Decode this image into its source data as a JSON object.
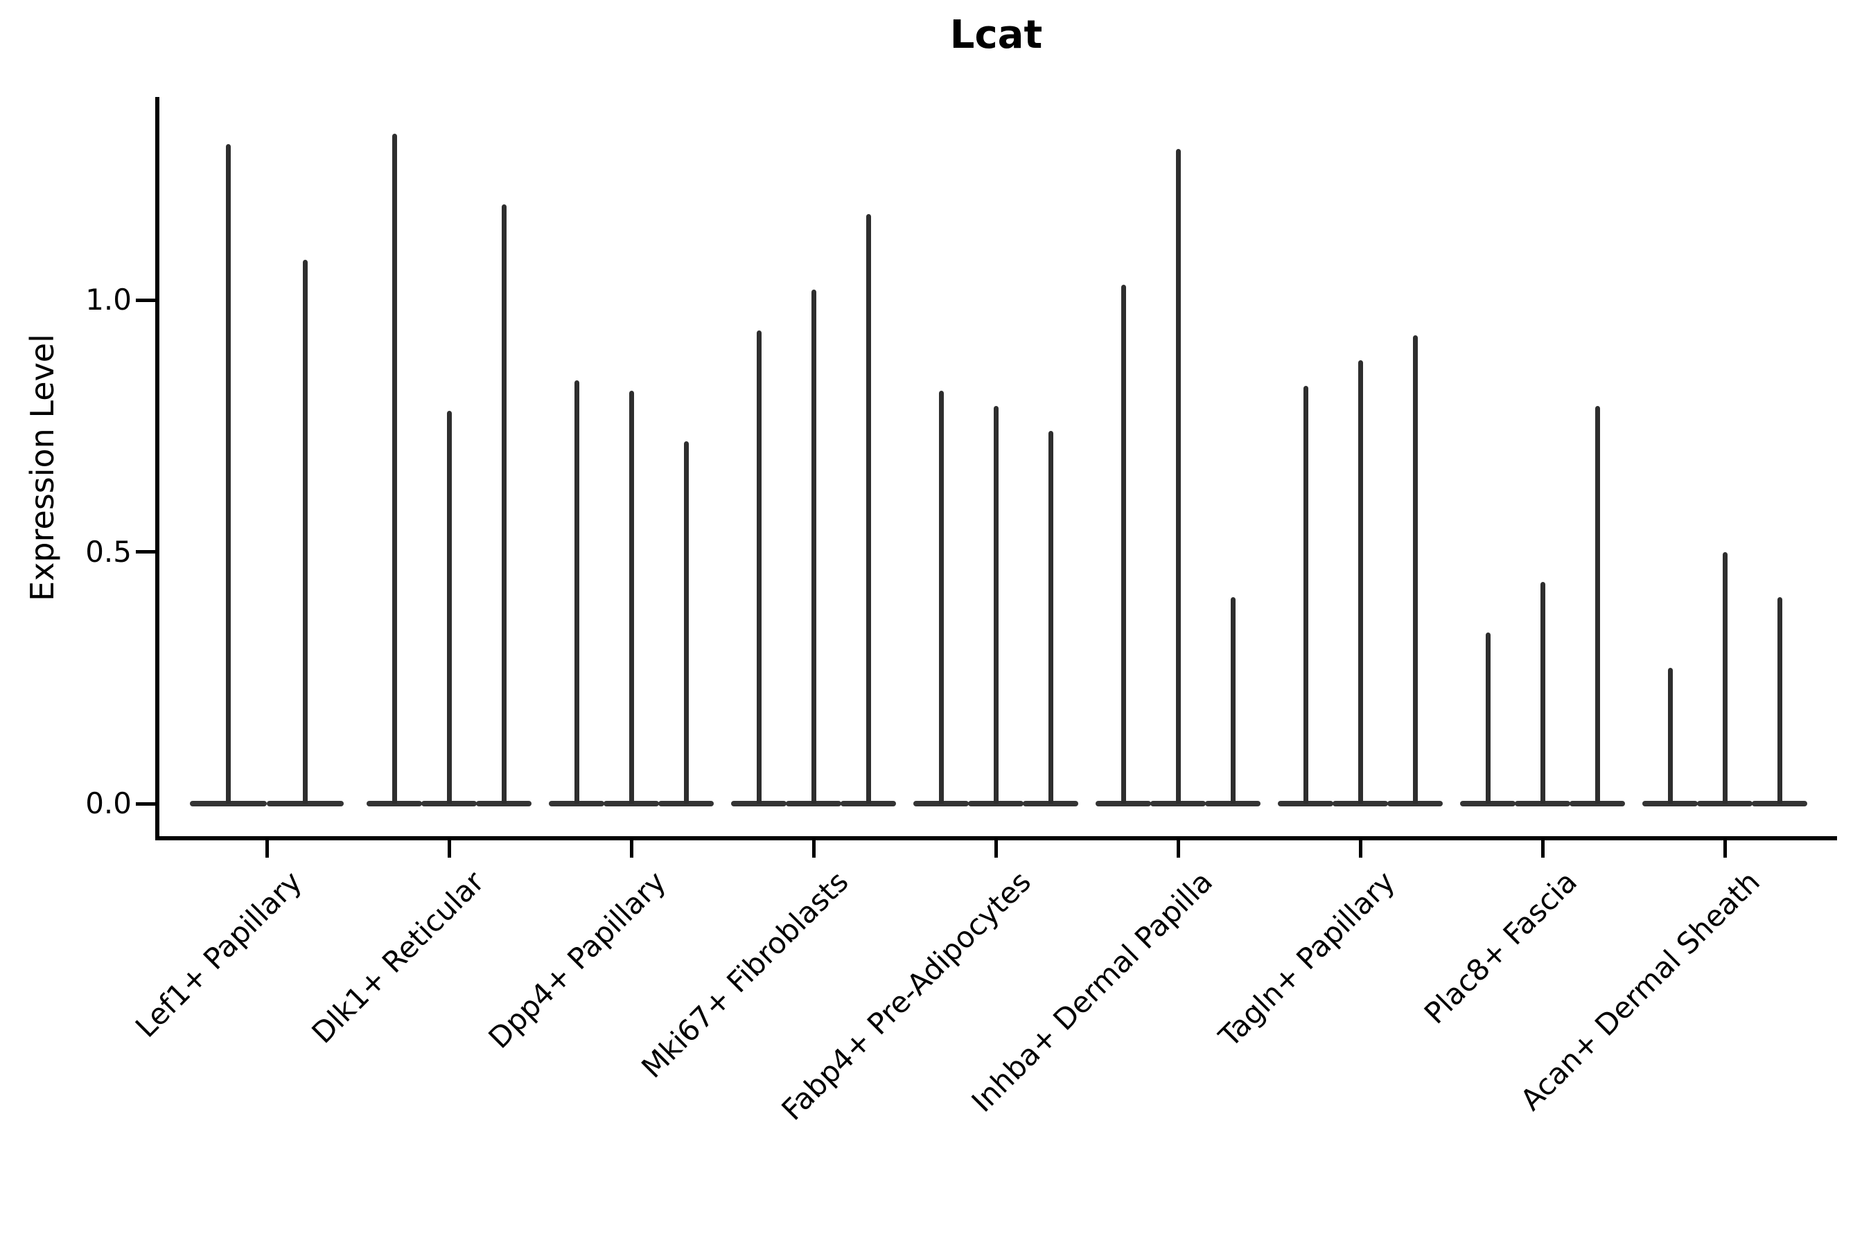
{
  "title": "Lcat",
  "ylabel": "Expression Level",
  "chart_data": {
    "type": "violin",
    "title": "Lcat",
    "xlabel": "",
    "ylabel": "Expression Level",
    "ylim": [
      -0.07,
      1.4
    ],
    "yticks": [
      0.0,
      0.5,
      1.0
    ],
    "ytick_labels": [
      "0.0",
      "0.5",
      "1.0"
    ],
    "grid": false,
    "legend": "none",
    "x_tick_rotation": 45,
    "description": "Stacked violin plot of Lcat expression; each category contains multiple very thin violins (spikes) rising from a flat base at expression 0, spike top = max expression.",
    "categories": [
      "Lef1+ Papillary",
      "Dlk1+ Reticular",
      "Dpp4+ Papillary",
      "Mki67+ Fibroblasts",
      "Fabp4+ Pre-Adipocytes",
      "Inhba+ Dermal Papilla",
      "Tagln+ Papillary",
      "Plac8+ Fascia",
      "Acan+ Dermal Sheath"
    ],
    "series": [
      {
        "name": "Lef1+ Papillary",
        "values": [
          1.31,
          1.08
        ]
      },
      {
        "name": "Dlk1+ Reticular",
        "values": [
          1.33,
          0.78,
          1.19
        ]
      },
      {
        "name": "Dpp4+ Papillary",
        "values": [
          0.84,
          0.82,
          0.72
        ]
      },
      {
        "name": "Mki67+ Fibroblasts",
        "values": [
          0.94,
          1.02,
          1.17
        ]
      },
      {
        "name": "Fabp4+ Pre-Adipocytes",
        "values": [
          0.82,
          0.79,
          0.74
        ]
      },
      {
        "name": "Inhba+ Dermal Papilla",
        "values": [
          1.03,
          1.3,
          0.41
        ]
      },
      {
        "name": "Tagln+ Papillary",
        "values": [
          0.83,
          0.88,
          0.93
        ]
      },
      {
        "name": "Plac8+ Fascia",
        "values": [
          0.34,
          0.44,
          0.79
        ]
      },
      {
        "name": "Acan+ Dermal Sheath",
        "values": [
          0.27,
          0.5,
          0.41
        ]
      }
    ]
  },
  "colors": {
    "background": "#ffffff",
    "spike": "#2e2e2e",
    "base": "#343434",
    "axis": "#000000",
    "text": "#000000"
  }
}
